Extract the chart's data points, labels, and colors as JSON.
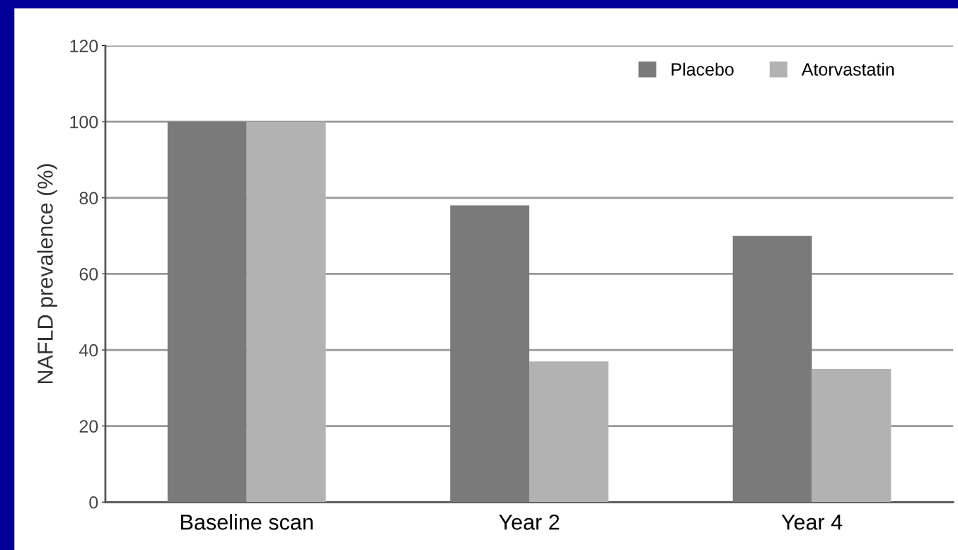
{
  "chart_data": {
    "type": "bar",
    "ylabel": "NAFLD prevalence (%)",
    "categories": [
      "Baseline scan",
      "Year 2",
      "Year 4"
    ],
    "series": [
      {
        "name": "Placebo",
        "color": "#7a7a7a",
        "values": [
          100,
          78,
          70
        ]
      },
      {
        "name": "Atorvastatin",
        "color": "#b2b2b2",
        "values": [
          100,
          37,
          35
        ]
      }
    ],
    "ylim": [
      0,
      120
    ],
    "yticks": [
      0,
      20,
      40,
      60,
      80,
      100,
      120
    ],
    "grid": "y",
    "legend": "top right"
  }
}
